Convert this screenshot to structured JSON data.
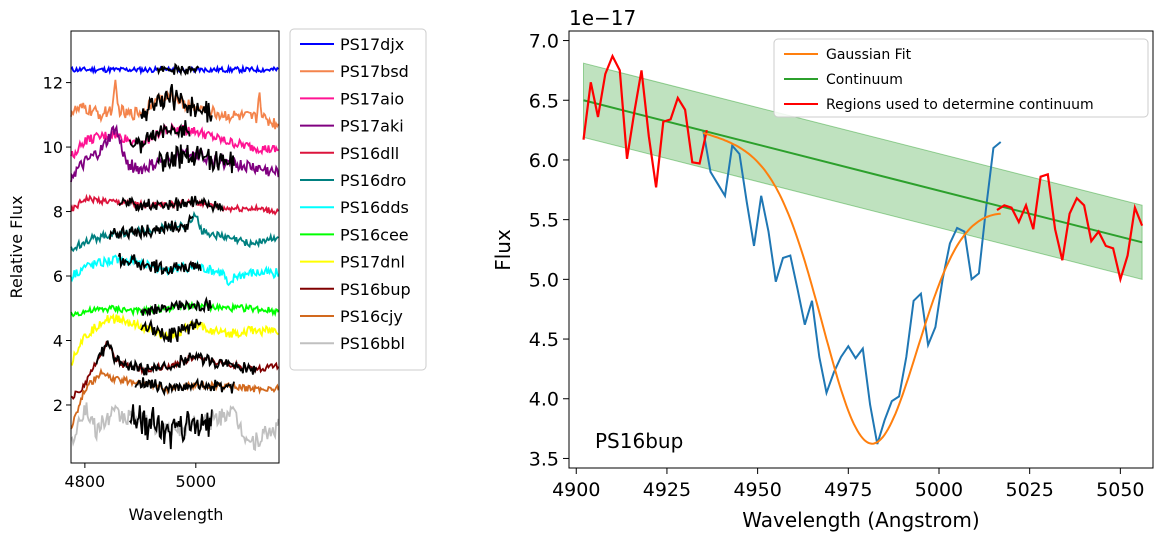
{
  "chart_data": [
    {
      "type": "line",
      "xlabel": "Wavelength",
      "ylabel": "Relative Flux",
      "xlim": [
        4775,
        5150
      ],
      "ylim": [
        0.2,
        13.6
      ],
      "xticks": [
        4800,
        5000
      ],
      "yticks": [
        2,
        4,
        6,
        8,
        10,
        12
      ],
      "legend_position": "outside-right",
      "series": [
        {
          "name": "PS17djx",
          "color": "#0000ff",
          "offset": 12.4,
          "wiggle": 0.08,
          "line_x": [],
          "line_y": [],
          "black_range": [
            4930,
            5005
          ]
        },
        {
          "name": "PS17bsd",
          "color": "#f4844c",
          "offset": 11.05,
          "wiggle": 0.2,
          "line_x": [
            4775,
            4800,
            4830,
            4850,
            4855,
            4860,
            4875,
            4900,
            4950,
            5000,
            5050,
            5110,
            5115,
            5120,
            5150
          ],
          "line_y": [
            11.1,
            11.2,
            11.0,
            11.2,
            11.9,
            11.2,
            11.0,
            11.1,
            11.6,
            11.2,
            11.0,
            10.9,
            11.8,
            10.9,
            10.7
          ],
          "black_range": [
            4900,
            5030
          ]
        },
        {
          "name": "PS17aio",
          "color": "#ff1493",
          "offset": 10.2,
          "wiggle": 0.15,
          "line_x": [
            4775,
            4800,
            4850,
            4900,
            4950,
            5000,
            5050,
            5100,
            5150
          ],
          "line_y": [
            9.7,
            10.2,
            10.4,
            10.1,
            10.6,
            10.5,
            10.2,
            10.0,
            9.9
          ],
          "black_range": [
            4880,
            4990
          ]
        },
        {
          "name": "PS17aki",
          "color": "#800080",
          "offset": 9.5,
          "wiggle": 0.2,
          "line_x": [
            4775,
            4800,
            4830,
            4855,
            4875,
            4900,
            4950,
            5000,
            5050,
            5100,
            5150
          ],
          "line_y": [
            9.1,
            9.5,
            9.9,
            10.6,
            9.5,
            9.3,
            9.6,
            9.8,
            9.5,
            9.4,
            9.2
          ],
          "black_range": [
            4930,
            5070
          ]
        },
        {
          "name": "PS16dll",
          "color": "#dc143c",
          "offset": 8.3,
          "wiggle": 0.1,
          "line_x": [
            4775,
            4800,
            4850,
            4900,
            4950,
            5000,
            5050,
            5100,
            5150
          ],
          "line_y": [
            8.0,
            8.4,
            8.3,
            8.2,
            8.2,
            8.3,
            8.1,
            8.1,
            8.0
          ],
          "black_range": [
            4860,
            5050
          ]
        },
        {
          "name": "PS16dro",
          "color": "#008080",
          "offset": 7.2,
          "wiggle": 0.12,
          "line_x": [
            4775,
            4800,
            4850,
            4900,
            4950,
            4990,
            5000,
            5010,
            5050,
            5100,
            5150
          ],
          "line_y": [
            6.8,
            7.1,
            7.3,
            7.4,
            7.5,
            7.6,
            8.0,
            7.4,
            7.2,
            7.0,
            7.2
          ],
          "black_range": [
            4845,
            4995
          ]
        },
        {
          "name": "PS16dds",
          "color": "#00ffff",
          "offset": 6.3,
          "wiggle": 0.15,
          "line_x": [
            4775,
            4800,
            4850,
            4900,
            4950,
            5000,
            5050,
            5060,
            5070,
            5100,
            5150
          ],
          "line_y": [
            6.0,
            6.3,
            6.5,
            6.4,
            6.2,
            6.3,
            6.1,
            5.6,
            6.0,
            6.1,
            6.1
          ],
          "black_range": [
            4860,
            5010
          ]
        },
        {
          "name": "PS16cee",
          "color": "#00ff00",
          "offset": 5.0,
          "wiggle": 0.1,
          "line_x": [
            4775,
            4800,
            4850,
            4900,
            4950,
            5000,
            5050,
            5100,
            5150
          ],
          "line_y": [
            4.8,
            4.9,
            5.0,
            4.9,
            5.0,
            5.1,
            5.0,
            5.0,
            4.9
          ],
          "black_range": [
            4900,
            5030
          ]
        },
        {
          "name": "PS17dnl",
          "color": "#ffff00",
          "offset": 4.2,
          "wiggle": 0.15,
          "line_x": [
            4775,
            4790,
            4800,
            4830,
            4860,
            4900,
            4950,
            5000,
            5050,
            5100,
            5150
          ],
          "line_y": [
            3.3,
            3.9,
            4.1,
            4.6,
            4.7,
            4.4,
            4.1,
            4.5,
            4.2,
            4.3,
            4.3
          ],
          "black_range": [
            4900,
            5010
          ]
        },
        {
          "name": "PS16bup",
          "color": "#800000",
          "offset": 3.3,
          "wiggle": 0.1,
          "line_x": [
            4775,
            4800,
            4820,
            4840,
            4860,
            4900,
            4950,
            5000,
            5050,
            5100,
            5150
          ],
          "line_y": [
            2.2,
            2.6,
            3.3,
            3.9,
            3.3,
            3.1,
            3.2,
            3.5,
            3.3,
            3.1,
            3.2
          ],
          "black_range": [
            4820,
            5110
          ]
        },
        {
          "name": "PS16cjy",
          "color": "#d2691e",
          "offset": 2.6,
          "wiggle": 0.1,
          "line_x": [
            4775,
            4800,
            4830,
            4850,
            4900,
            4950,
            5000,
            5050,
            5100,
            5150
          ],
          "line_y": [
            1.3,
            2.5,
            3.0,
            2.8,
            2.7,
            2.5,
            2.6,
            2.6,
            2.5,
            2.5
          ],
          "black_range": [
            4890,
            5070
          ]
        },
        {
          "name": "PS16bbl",
          "color": "#c0c0c0",
          "offset": 1.2,
          "wiggle": 0.3,
          "line_x": [
            4775,
            4790,
            4800,
            4820,
            4850,
            4900,
            4950,
            5000,
            5050,
            5060,
            5080,
            5100,
            5150
          ],
          "line_y": [
            0.8,
            1.6,
            1.9,
            1.2,
            1.7,
            1.5,
            1.2,
            1.4,
            1.6,
            1.9,
            1.3,
            0.8,
            1.3
          ],
          "black_range": [
            4880,
            5030
          ]
        }
      ]
    },
    {
      "type": "line",
      "xlabel": "Wavelength (Angstrom)",
      "ylabel": "Flux",
      "scale_label": "1e−17",
      "annotation": "PS16bup",
      "xlim": [
        4898,
        5059
      ],
      "ylim": [
        3.42,
        7.08
      ],
      "xticks": [
        4900,
        4925,
        4950,
        4975,
        5000,
        5025,
        5050
      ],
      "xtick_labels": [
        "4900",
        "4925",
        "4950",
        "4975",
        "5000",
        "5025",
        "5050"
      ],
      "yticks": [
        3.5,
        4.0,
        4.5,
        5.0,
        5.5,
        6.0,
        6.5,
        7.0
      ],
      "ytick_labels": [
        "3.5",
        "4.0",
        "4.5",
        "5.0",
        "5.5",
        "6.0",
        "6.5",
        "7.0"
      ],
      "legend_position": "upper-right",
      "legend": [
        {
          "name": "Gaussian Fit",
          "color": "#ff7f0e"
        },
        {
          "name": "Continuum",
          "color": "#2ca02c"
        },
        {
          "name": "Regions used to determine continuum",
          "color": "#ff0000"
        }
      ],
      "spectrum": {
        "color": "#1f77b4",
        "x": [
          4935,
          4937,
          4939,
          4941,
          4943,
          4945,
          4947,
          4949,
          4951,
          4953,
          4955,
          4957,
          4959,
          4961,
          4963,
          4965,
          4967,
          4969,
          4971,
          4973,
          4975,
          4977,
          4979,
          4981,
          4983,
          4985,
          4987,
          4989,
          4991,
          4993,
          4995,
          4997,
          4999,
          5001,
          5003,
          5005,
          5007,
          5009,
          5011,
          5013,
          5015,
          5017
        ],
        "y": [
          6.25,
          5.9,
          5.8,
          5.7,
          6.12,
          6.05,
          5.65,
          5.28,
          5.7,
          5.4,
          4.98,
          5.18,
          5.2,
          4.92,
          4.62,
          4.82,
          4.35,
          4.05,
          4.22,
          4.35,
          4.44,
          4.34,
          4.42,
          3.95,
          3.62,
          3.82,
          3.98,
          4.02,
          4.35,
          4.82,
          4.88,
          4.45,
          4.6,
          5.0,
          5.3,
          5.43,
          5.4,
          5.0,
          5.05,
          5.6,
          6.1,
          6.15
        ]
      },
      "regions": {
        "color": "#ff0000",
        "x": [
          4902,
          4904,
          4906,
          4908,
          4910,
          4912,
          4914,
          4916,
          4918,
          4920,
          4922,
          4924,
          4926,
          4928,
          4930,
          4932,
          4934,
          4936
        ],
        "y": [
          6.17,
          6.65,
          6.36,
          6.72,
          6.87,
          6.75,
          6.01,
          6.4,
          6.75,
          6.2,
          5.77,
          6.32,
          6.34,
          6.52,
          6.42,
          5.98,
          5.97,
          6.25
        ],
        "x2": [
          5016,
          5018,
          5020,
          5022,
          5024,
          5026,
          5028,
          5030,
          5032,
          5034,
          5036,
          5038,
          5040,
          5042,
          5044,
          5046,
          5048,
          5050,
          5052,
          5054,
          5056
        ],
        "y2": [
          5.58,
          5.62,
          5.6,
          5.48,
          5.62,
          5.42,
          5.86,
          5.88,
          5.42,
          5.16,
          5.55,
          5.68,
          5.62,
          5.32,
          5.4,
          5.28,
          5.26,
          5.0,
          5.2,
          5.6,
          5.45
        ]
      },
      "continuum": {
        "color": "#2ca02c",
        "x": [
          4902,
          5056
        ],
        "y": [
          6.5,
          5.31
        ],
        "band": 0.31
      },
      "gaussian_fit": {
        "color": "#ff7f0e",
        "x_start": 4935,
        "x_end": 5017,
        "amplitude": 2.25,
        "center": 4981,
        "sigma": 13,
        "baseline_at_start": 6.23,
        "baseline_slope": -0.0077
      }
    }
  ]
}
